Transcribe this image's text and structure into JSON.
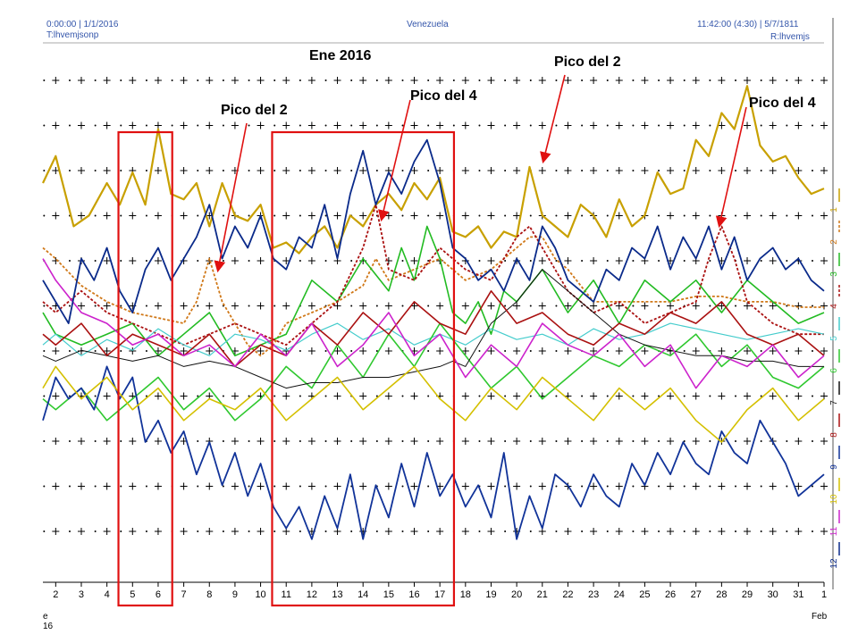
{
  "header": {
    "left_time": "0:00:00 | 1/1/2016",
    "left_sub": "T:lhvemjsonp",
    "center": "Venezuela",
    "right_time": "11:42:00 (4:30) | 5/7/1811",
    "right_sub": "R:lhvemjs"
  },
  "chart_data": {
    "type": "line",
    "title": "Ene 2016",
    "x_start_label": "e",
    "x_start_sub": "16",
    "x_end_label": "Feb",
    "xlim": [
      1.5,
      32
    ],
    "ylim": [
      0,
      100
    ],
    "grid": "dotted-plus",
    "categories": [
      "2",
      "3",
      "4",
      "5",
      "6",
      "7",
      "8",
      "9",
      "10",
      "11",
      "12",
      "13",
      "14",
      "15",
      "16",
      "17",
      "18",
      "19",
      "20",
      "21",
      "22",
      "23",
      "24",
      "25",
      "26",
      "27",
      "28",
      "29",
      "30",
      "31",
      "1"
    ],
    "series": [
      {
        "name": "1",
        "color": "#c8a000",
        "dash": "",
        "width": 2.2,
        "x": [
          1.5,
          2,
          2.7,
          3.3,
          4,
          4.5,
          5,
          5.5,
          6,
          6.5,
          7,
          7.5,
          8,
          8.5,
          9,
          9.5,
          10,
          10.5,
          11,
          11.5,
          12,
          12.5,
          13,
          13.5,
          14,
          14.5,
          15,
          15.5,
          16,
          16.5,
          17,
          17.5,
          18,
          18.5,
          19,
          19.5,
          20,
          20.5,
          21,
          21.5,
          22,
          22.5,
          23,
          23.5,
          24,
          24.5,
          25,
          25.5,
          26,
          26.5,
          27,
          27.5,
          28,
          28.5,
          29,
          29.5,
          30,
          30.5,
          31,
          31.5,
          32
        ],
        "y": [
          74,
          79,
          66,
          68,
          74,
          70,
          76,
          70,
          84,
          72,
          71,
          74,
          66,
          74,
          68,
          67,
          70,
          62,
          63,
          61,
          64,
          66,
          62,
          68,
          66,
          70,
          72,
          69,
          74,
          71,
          75,
          65,
          64,
          66,
          62,
          65,
          64,
          77,
          68,
          66,
          64,
          70,
          68,
          64,
          71,
          66,
          68,
          76,
          72,
          73,
          82,
          79,
          87,
          84,
          92,
          81,
          78,
          79,
          75,
          72,
          73
        ]
      },
      {
        "name": "2",
        "color": "#d07818",
        "dash": "3,2",
        "width": 1.8,
        "x": [
          1.5,
          2,
          3,
          4,
          5,
          6,
          7,
          7.5,
          8,
          8.5,
          9,
          9.5,
          10,
          10.5,
          11,
          12,
          13,
          14,
          14.5,
          15,
          16,
          17,
          18,
          19,
          19.5,
          20,
          20.5,
          21,
          21.5,
          22,
          23,
          24,
          25,
          26,
          27,
          28,
          29,
          30,
          31,
          32
        ],
        "y": [
          62,
          60,
          55,
          52,
          50,
          49,
          48,
          52,
          60,
          52,
          48,
          44,
          42,
          44,
          48,
          50,
          52,
          55,
          60,
          56,
          58,
          60,
          56,
          58,
          60,
          62,
          64,
          64,
          60,
          58,
          52,
          52,
          52,
          52,
          53,
          53,
          52,
          52,
          51,
          51
        ]
      },
      {
        "name": "3",
        "color": "#22bb22",
        "dash": "",
        "width": 1.6,
        "x": [
          1.5,
          2,
          3,
          4,
          5,
          6,
          7,
          8,
          9,
          10,
          11,
          12,
          13,
          14,
          15,
          15.5,
          16,
          16.5,
          17,
          17.5,
          18,
          18.5,
          19,
          19.5,
          20,
          21,
          22,
          23,
          24,
          25,
          26,
          27,
          28,
          29,
          30,
          31,
          32
        ],
        "y": [
          50,
          46,
          44,
          46,
          48,
          42,
          46,
          50,
          42,
          44,
          46,
          56,
          52,
          60,
          54,
          62,
          56,
          66,
          60,
          50,
          48,
          52,
          46,
          54,
          52,
          58,
          50,
          56,
          48,
          56,
          52,
          56,
          50,
          56,
          52,
          48,
          50
        ]
      },
      {
        "name": "4",
        "color": "#aa1111",
        "dash": "3,2",
        "width": 1.8,
        "x": [
          1.5,
          2,
          3,
          4,
          5,
          6,
          7,
          8,
          9,
          10,
          11,
          12,
          13,
          14,
          14.5,
          15,
          16,
          17,
          18,
          19,
          19.5,
          20,
          20.5,
          21,
          21.5,
          22,
          23,
          24,
          25,
          26,
          27,
          27.5,
          28,
          28.5,
          29,
          30,
          31,
          32
        ],
        "y": [
          52,
          50,
          54,
          50,
          48,
          46,
          44,
          46,
          48,
          46,
          44,
          48,
          52,
          62,
          70,
          58,
          56,
          62,
          58,
          56,
          60,
          64,
          66,
          62,
          58,
          54,
          50,
          52,
          48,
          50,
          52,
          60,
          66,
          60,
          52,
          48,
          46,
          46
        ]
      },
      {
        "name": "5",
        "color": "#44cccc",
        "dash": "",
        "width": 1.2,
        "x": [
          1.5,
          2,
          3,
          4,
          5,
          6,
          7,
          8,
          9,
          10,
          11,
          12,
          13,
          14,
          15,
          16,
          17,
          18,
          19,
          20,
          21,
          22,
          23,
          24,
          25,
          26,
          27,
          28,
          29,
          30,
          31,
          32
        ],
        "y": [
          44,
          46,
          42,
          45,
          43,
          47,
          44,
          42,
          46,
          45,
          43,
          46,
          48,
          45,
          47,
          44,
          46,
          44,
          47,
          45,
          46,
          44,
          47,
          45,
          46,
          48,
          47,
          46,
          45,
          46,
          47,
          46
        ]
      },
      {
        "name": "6",
        "color": "#2fc82f",
        "dash": "",
        "width": 1.6,
        "x": [
          1.5,
          2,
          3,
          4,
          5,
          6,
          7,
          8,
          9,
          10,
          11,
          12,
          13,
          14,
          15,
          16,
          17,
          18,
          19,
          20,
          21,
          22,
          23,
          24,
          25,
          26,
          27,
          28,
          29,
          30,
          31,
          32
        ],
        "y": [
          34,
          32,
          36,
          30,
          34,
          38,
          32,
          36,
          30,
          34,
          40,
          36,
          44,
          38,
          46,
          40,
          48,
          42,
          36,
          40,
          34,
          38,
          42,
          40,
          44,
          42,
          46,
          40,
          44,
          38,
          36,
          40
        ]
      },
      {
        "name": "7",
        "color": "#111111",
        "dash": "",
        "width": 1.0,
        "x": [
          1.5,
          2,
          3,
          4,
          5,
          6,
          7,
          8,
          9,
          10,
          11,
          12,
          13,
          14,
          15,
          16,
          17,
          17.5,
          18,
          19,
          20,
          21,
          22,
          23,
          24,
          25,
          26,
          27,
          28,
          29,
          30,
          31,
          32
        ],
        "y": [
          42,
          41,
          43,
          42,
          41,
          42,
          40,
          41,
          40,
          38,
          36,
          37,
          37,
          38,
          38,
          39,
          40,
          41,
          40,
          48,
          52,
          58,
          54,
          50,
          46,
          44,
          43,
          42,
          42,
          41,
          41,
          40,
          40
        ]
      },
      {
        "name": "8",
        "color": "#aa1111",
        "dash": "",
        "width": 1.6,
        "x": [
          1.5,
          2,
          3,
          4,
          5,
          6,
          7,
          8,
          9,
          10,
          11,
          12,
          13,
          14,
          15,
          16,
          17,
          18,
          19,
          20,
          21,
          22,
          23,
          24,
          25,
          26,
          27,
          28,
          29,
          30,
          31,
          32
        ],
        "y": [
          46,
          44,
          48,
          42,
          46,
          44,
          42,
          46,
          40,
          44,
          42,
          48,
          44,
          50,
          46,
          52,
          48,
          46,
          54,
          48,
          50,
          46,
          44,
          48,
          46,
          50,
          48,
          52,
          46,
          44,
          46,
          42
        ]
      },
      {
        "name": "9",
        "color": "#113399",
        "dash": "",
        "width": 1.8,
        "x": [
          1.5,
          2,
          2.5,
          3,
          3.5,
          4,
          4.5,
          5,
          5.5,
          6,
          6.5,
          7,
          7.5,
          8,
          8.5,
          9,
          9.5,
          10,
          10.5,
          11,
          11.5,
          12,
          12.5,
          13,
          13.5,
          14,
          14.5,
          15,
          15.5,
          16,
          16.5,
          17,
          17.5,
          18,
          18.5,
          19,
          19.5,
          20,
          20.5,
          21,
          21.5,
          22,
          22.5,
          23,
          23.5,
          24,
          24.5,
          25,
          25.5,
          26,
          26.5,
          27,
          27.5,
          28,
          28.5,
          29,
          29.5,
          30,
          30.5,
          31,
          31.5,
          32
        ],
        "y": [
          30,
          38,
          34,
          36,
          32,
          40,
          34,
          38,
          26,
          30,
          24,
          28,
          20,
          26,
          18,
          24,
          16,
          22,
          14,
          10,
          14,
          8,
          16,
          10,
          20,
          8,
          18,
          12,
          22,
          14,
          24,
          16,
          20,
          14,
          18,
          12,
          24,
          8,
          16,
          10,
          20,
          18,
          14,
          20,
          16,
          14,
          22,
          18,
          24,
          20,
          26,
          22,
          20,
          28,
          24,
          22,
          30,
          26,
          22,
          16,
          18,
          20
        ]
      },
      {
        "name": "10",
        "color": "#d4c000",
        "dash": "",
        "width": 1.6,
        "x": [
          1.5,
          2,
          3,
          4,
          5,
          6,
          7,
          8,
          9,
          10,
          11,
          12,
          13,
          14,
          15,
          16,
          17,
          18,
          19,
          20,
          21,
          22,
          23,
          24,
          25,
          26,
          27,
          28,
          29,
          30,
          31,
          32
        ],
        "y": [
          36,
          40,
          34,
          38,
          32,
          36,
          30,
          34,
          32,
          36,
          30,
          34,
          38,
          32,
          36,
          40,
          34,
          30,
          36,
          32,
          38,
          34,
          30,
          36,
          32,
          36,
          30,
          26,
          32,
          36,
          30,
          34
        ]
      },
      {
        "name": "11",
        "color": "#cc22cc",
        "dash": "",
        "width": 1.6,
        "x": [
          1.5,
          2,
          3,
          4,
          5,
          6,
          7,
          8,
          9,
          10,
          11,
          12,
          13,
          14,
          15,
          16,
          17,
          18,
          19,
          20,
          21,
          22,
          23,
          24,
          25,
          26,
          27,
          28,
          29,
          30,
          31,
          32
        ],
        "y": [
          60,
          56,
          50,
          48,
          44,
          46,
          42,
          44,
          40,
          46,
          42,
          48,
          40,
          44,
          50,
          42,
          46,
          38,
          44,
          40,
          48,
          44,
          42,
          46,
          40,
          44,
          36,
          42,
          40,
          44,
          38,
          42
        ]
      },
      {
        "name": "12",
        "color": "#0a2a8a",
        "dash": "",
        "width": 1.8,
        "x": [
          1.5,
          2,
          2.5,
          3,
          3.5,
          4,
          4.5,
          5,
          5.5,
          6,
          6.5,
          7,
          7.5,
          8,
          8.5,
          9,
          9.5,
          10,
          10.5,
          11,
          11.5,
          12,
          12.5,
          13,
          13.5,
          14,
          14.5,
          15,
          15.5,
          16,
          16.5,
          17,
          17.5,
          18,
          18.5,
          19,
          19.5,
          20,
          20.5,
          21,
          21.5,
          22,
          22.5,
          23,
          23.5,
          24,
          24.5,
          25,
          25.5,
          26,
          26.5,
          27,
          27.5,
          28,
          28.5,
          29,
          29.5,
          30,
          30.5,
          31,
          31.5,
          32
        ],
        "y": [
          56,
          52,
          48,
          60,
          56,
          62,
          54,
          50,
          58,
          62,
          56,
          60,
          64,
          70,
          60,
          66,
          62,
          68,
          60,
          58,
          64,
          62,
          70,
          60,
          72,
          80,
          70,
          76,
          72,
          78,
          82,
          74,
          62,
          60,
          56,
          58,
          54,
          60,
          56,
          66,
          62,
          56,
          54,
          52,
          58,
          56,
          62,
          60,
          66,
          58,
          64,
          60,
          66,
          58,
          64,
          56,
          60,
          62,
          58,
          60,
          56,
          54
        ]
      }
    ],
    "annotations": [
      {
        "text": "Pico del 2"
      },
      {
        "text": "Pico del 4"
      },
      {
        "text": "Pico del 2"
      },
      {
        "text": "Pico del 4"
      }
    ],
    "highlight_ranges": [
      {
        "from": 5,
        "to": 6
      },
      {
        "from": 11,
        "to": 17
      }
    ]
  }
}
